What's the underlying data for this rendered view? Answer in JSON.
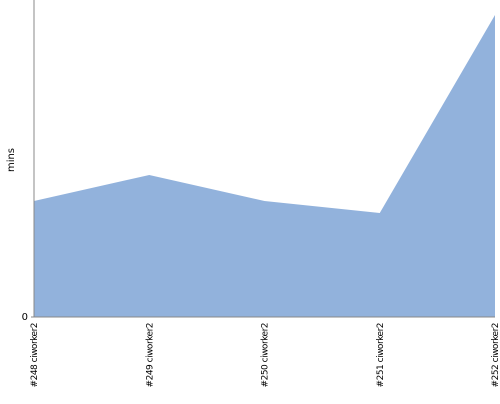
{
  "chart_data": {
    "type": "area",
    "y_label": "mins",
    "categories": [
      "#248 ciworker2",
      "#249 ciworker2",
      "#250 ciworker2",
      "#251 ciworker2",
      "#252 ciworker2"
    ],
    "values": [
      116,
      142,
      116,
      104,
      302
    ],
    "color": "#92b2dc",
    "ylim": [
      0,
      317
    ],
    "yticks": [
      0
    ]
  }
}
